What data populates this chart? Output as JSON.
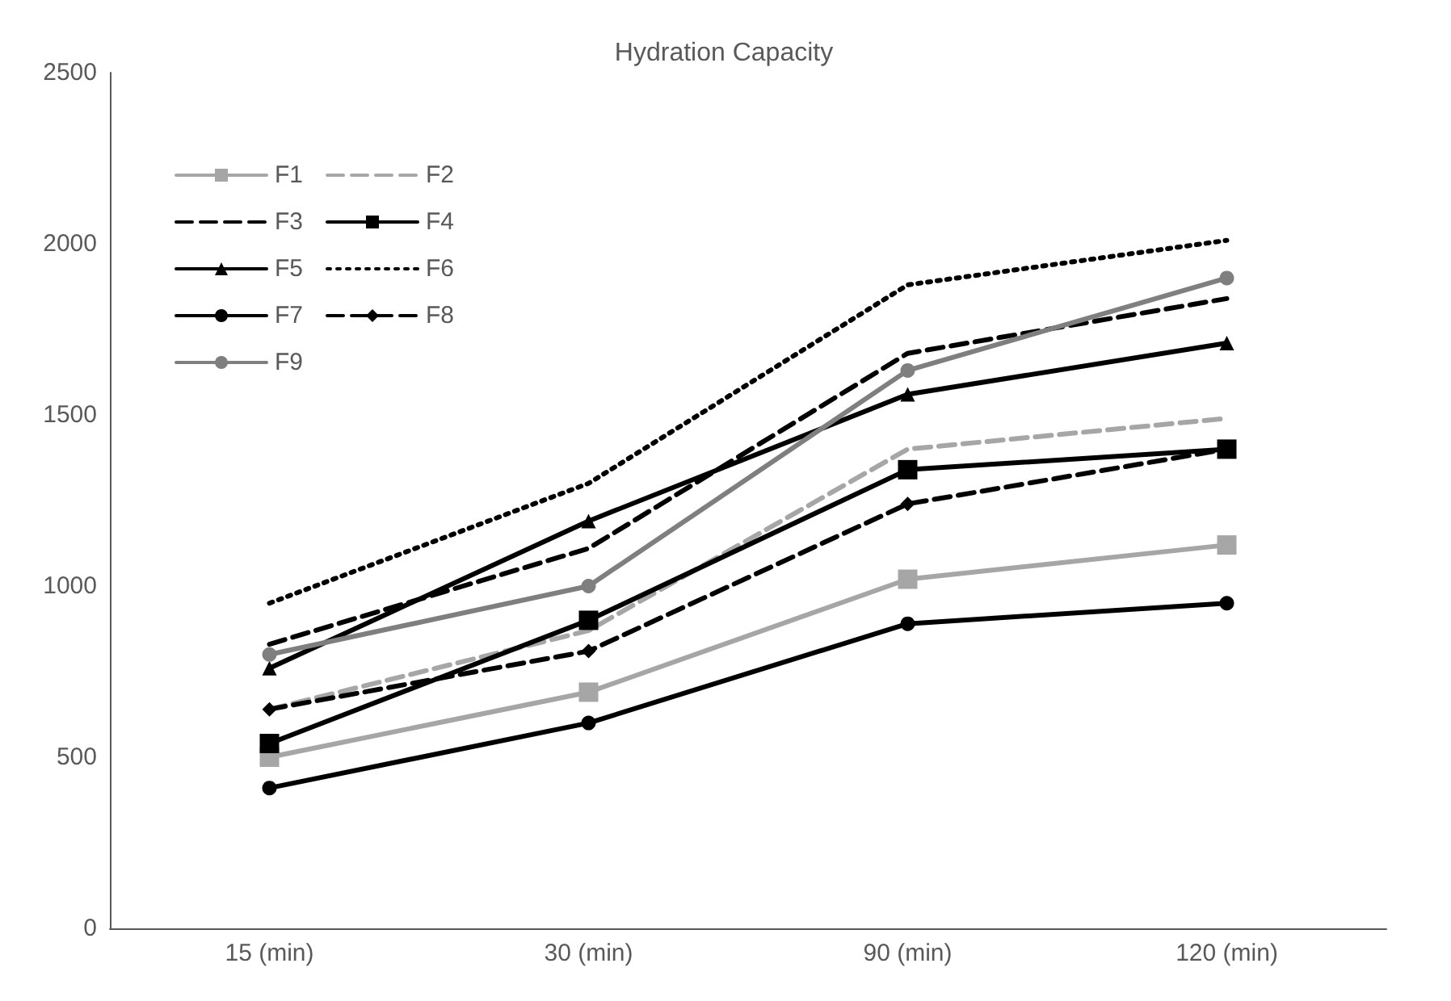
{
  "chart_data": {
    "type": "line",
    "title": "Hydration Capacity",
    "categories": [
      "15 (min)",
      "30 (min)",
      "90 (min)",
      "120 (min)"
    ],
    "ylim": [
      0,
      2500
    ],
    "yticks": [
      0,
      500,
      1000,
      1500,
      2000,
      2500
    ],
    "grid": false,
    "legend": "top left",
    "series": [
      {
        "name": "F1",
        "color": "#a6a6a6",
        "marker": "square",
        "line_style": "solid",
        "values": [
          500,
          690,
          1020,
          1120
        ]
      },
      {
        "name": "F2",
        "color": "#a6a6a6",
        "marker": "none",
        "line_style": "dashed",
        "values": [
          640,
          870,
          1400,
          1490
        ]
      },
      {
        "name": "F3",
        "color": "#000000",
        "marker": "none",
        "line_style": "dashed",
        "values": [
          830,
          1110,
          1680,
          1840
        ]
      },
      {
        "name": "F4",
        "color": "#000000",
        "marker": "square",
        "line_style": "solid",
        "values": [
          540,
          900,
          1340,
          1400
        ]
      },
      {
        "name": "F5",
        "color": "#000000",
        "marker": "triangle",
        "line_style": "solid",
        "values": [
          760,
          1190,
          1560,
          1710
        ]
      },
      {
        "name": "F6",
        "color": "#000000",
        "marker": "none",
        "line_style": "dotted",
        "values": [
          950,
          1300,
          1880,
          2010
        ]
      },
      {
        "name": "F7",
        "color": "#000000",
        "marker": "circle",
        "line_style": "solid",
        "values": [
          410,
          600,
          890,
          950
        ]
      },
      {
        "name": "F8",
        "color": "#000000",
        "marker": "diamond",
        "line_style": "dashed",
        "values": [
          640,
          810,
          1240,
          1400
        ]
      },
      {
        "name": "F9",
        "color": "#7f7f7f",
        "marker": "circle",
        "line_style": "solid",
        "values": [
          800,
          1000,
          1630,
          1900
        ]
      }
    ]
  }
}
